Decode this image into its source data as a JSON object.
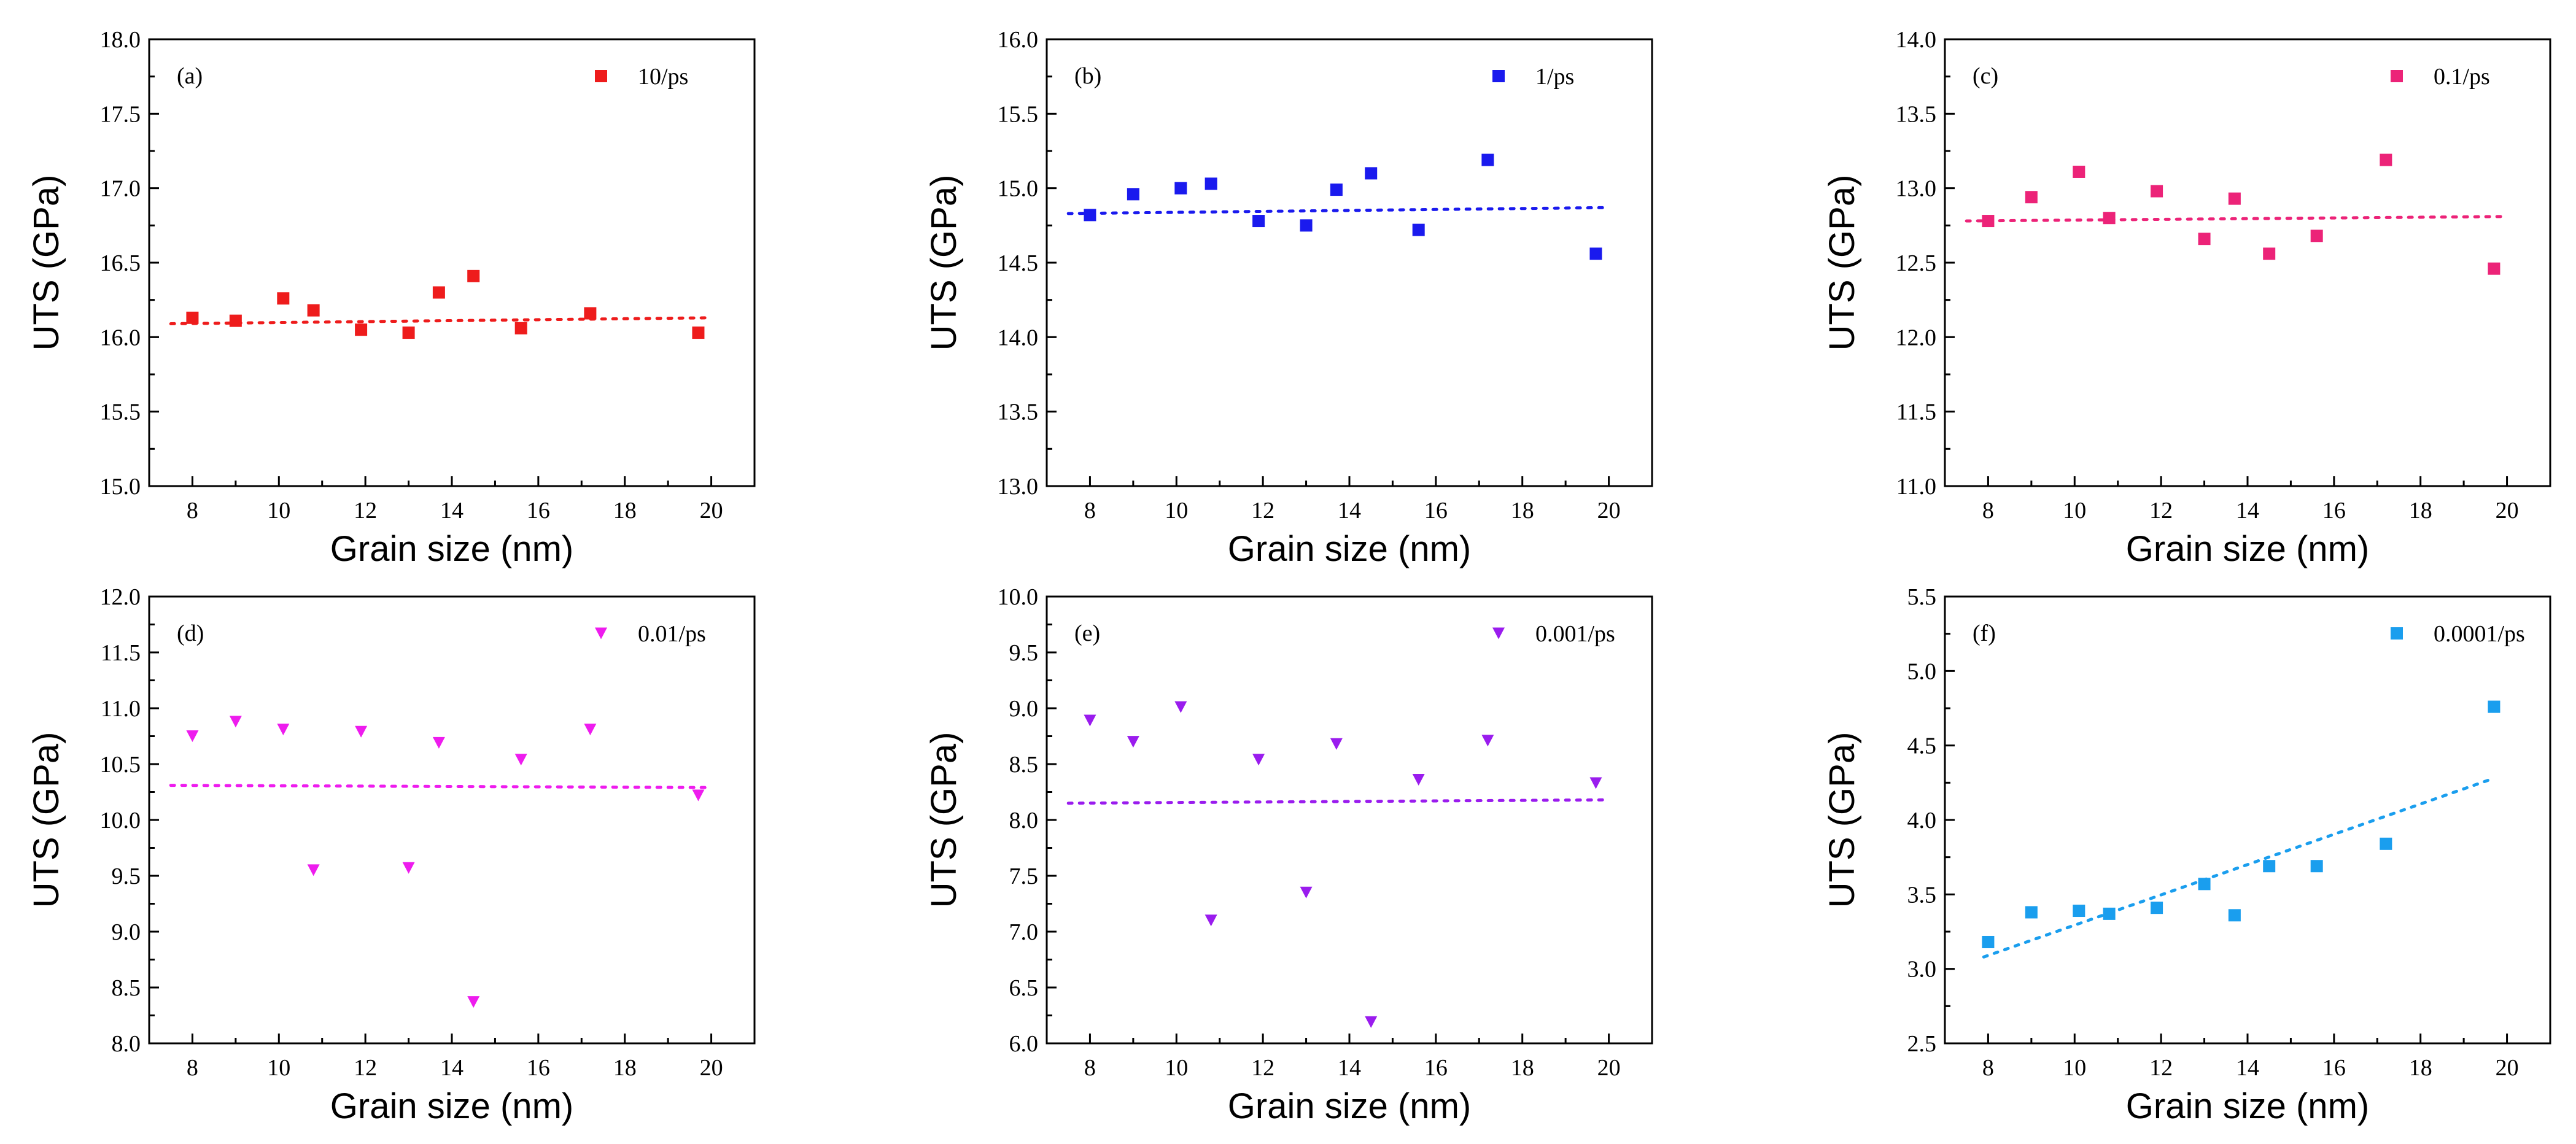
{
  "chart_data": [
    {
      "type": "scatter",
      "panel_label": "(a)",
      "xlabel": "Grain size (nm)",
      "ylabel": "UTS (GPa)",
      "xlim": [
        7.0,
        21.0
      ],
      "ylim": [
        15.0,
        18.0
      ],
      "xticks": [
        8,
        10,
        12,
        14,
        16,
        18,
        20
      ],
      "xtick_labels": [
        "8",
        "10",
        "12",
        "14",
        "16",
        "18",
        "20"
      ],
      "yticks": [
        15.0,
        15.5,
        16.0,
        16.5,
        17.0,
        17.5,
        18.0
      ],
      "ytick_labels": [
        "15.0",
        "15.5",
        "16.0",
        "16.5",
        "17.0",
        "17.5",
        "18.0"
      ],
      "legend_position": "top-right",
      "marker": "square",
      "color": "#ee1c1c",
      "series": [
        {
          "name": "10/ps",
          "x": [
            8.0,
            9.0,
            10.1,
            10.8,
            11.9,
            13.0,
            13.7,
            14.5,
            15.6,
            17.2,
            19.7
          ],
          "y": [
            16.13,
            16.11,
            16.26,
            16.18,
            16.05,
            16.03,
            16.3,
            16.41,
            16.06,
            16.16,
            16.03
          ]
        }
      ],
      "trend": {
        "x": [
          7.5,
          20.0
        ],
        "y": [
          16.09,
          16.13
        ]
      }
    },
    {
      "type": "scatter",
      "panel_label": "(b)",
      "xlabel": "Grain size (nm)",
      "ylabel": "UTS (GPa)",
      "xlim": [
        7.0,
        21.0
      ],
      "ylim": [
        13.0,
        16.0
      ],
      "xticks": [
        8,
        10,
        12,
        14,
        16,
        18,
        20
      ],
      "xtick_labels": [
        "8",
        "10",
        "12",
        "14",
        "16",
        "18",
        "20"
      ],
      "yticks": [
        13.0,
        13.5,
        14.0,
        14.5,
        15.0,
        15.5,
        16.0
      ],
      "ytick_labels": [
        "13.0",
        "13.5",
        "14.0",
        "14.5",
        "15.0",
        "15.5",
        "16.0"
      ],
      "legend_position": "top-right",
      "marker": "square",
      "color": "#1a1aee",
      "series": [
        {
          "name": "1/ps",
          "x": [
            8.0,
            9.0,
            10.1,
            10.8,
            11.9,
            13.0,
            13.7,
            14.5,
            15.6,
            17.2,
            19.7
          ],
          "y": [
            14.82,
            14.96,
            15.0,
            15.03,
            14.78,
            14.75,
            14.99,
            15.1,
            14.72,
            15.19,
            14.56
          ]
        }
      ],
      "trend": {
        "x": [
          7.5,
          20.0
        ],
        "y": [
          14.83,
          14.87
        ]
      }
    },
    {
      "type": "scatter",
      "panel_label": "(c)",
      "xlabel": "Grain size (nm)",
      "ylabel": "UTS (GPa)",
      "xlim": [
        7.0,
        21.0
      ],
      "ylim": [
        11.0,
        14.0
      ],
      "xticks": [
        8,
        10,
        12,
        14,
        16,
        18,
        20
      ],
      "xtick_labels": [
        "8",
        "10",
        "12",
        "14",
        "16",
        "18",
        "20"
      ],
      "yticks": [
        11.0,
        11.5,
        12.0,
        12.5,
        13.0,
        13.5,
        14.0
      ],
      "ytick_labels": [
        "11.0",
        "11.5",
        "12.0",
        "12.5",
        "13.0",
        "13.5",
        "14.0"
      ],
      "legend_position": "top-right",
      "marker": "square",
      "color": "#ec2378",
      "series": [
        {
          "name": "0.1/ps",
          "x": [
            8.0,
            9.0,
            10.1,
            10.8,
            11.9,
            13.0,
            13.7,
            14.5,
            15.6,
            17.2,
            19.7
          ],
          "y": [
            12.78,
            12.94,
            13.11,
            12.8,
            12.98,
            12.66,
            12.93,
            12.56,
            12.68,
            13.19,
            12.46
          ]
        }
      ],
      "trend": {
        "x": [
          7.5,
          20.0
        ],
        "y": [
          12.78,
          12.81
        ]
      }
    },
    {
      "type": "scatter",
      "panel_label": "(d)",
      "xlabel": "Grain size (nm)",
      "ylabel": "UTS (GPa)",
      "xlim": [
        7.0,
        21.0
      ],
      "ylim": [
        8.0,
        12.0
      ],
      "xticks": [
        8,
        10,
        12,
        14,
        16,
        18,
        20
      ],
      "xtick_labels": [
        "8",
        "10",
        "12",
        "14",
        "16",
        "18",
        "20"
      ],
      "yticks": [
        8.0,
        8.5,
        9.0,
        9.5,
        10.0,
        10.5,
        11.0,
        11.5,
        12.0
      ],
      "ytick_labels": [
        "8.0",
        "8.5",
        "9.0",
        "9.5",
        "10.0",
        "10.5",
        "11.0",
        "11.5",
        "12.0"
      ],
      "legend_position": "top-right",
      "marker": "triangle-down",
      "color": "#ee1cee",
      "series": [
        {
          "name": "0.01/ps",
          "x": [
            8.0,
            9.0,
            10.1,
            10.8,
            11.9,
            13.0,
            13.7,
            14.5,
            15.6,
            17.2,
            19.7
          ],
          "y": [
            10.75,
            10.88,
            10.81,
            9.55,
            10.79,
            9.57,
            10.69,
            8.37,
            10.54,
            10.81,
            10.22
          ]
        }
      ],
      "trend": {
        "x": [
          7.5,
          20.0
        ],
        "y": [
          10.31,
          10.29
        ]
      }
    },
    {
      "type": "scatter",
      "panel_label": "(e)",
      "xlabel": "Grain size (nm)",
      "ylabel": "UTS (GPa)",
      "xlim": [
        7.0,
        21.0
      ],
      "ylim": [
        6.0,
        10.0
      ],
      "xticks": [
        8,
        10,
        12,
        14,
        16,
        18,
        20
      ],
      "xtick_labels": [
        "8",
        "10",
        "12",
        "14",
        "16",
        "18",
        "20"
      ],
      "yticks": [
        6.0,
        6.5,
        7.0,
        7.5,
        8.0,
        8.5,
        9.0,
        9.5,
        10.0
      ],
      "ytick_labels": [
        "6.0",
        "6.5",
        "7.0",
        "7.5",
        "8.0",
        "8.5",
        "9.0",
        "9.5",
        "10.0"
      ],
      "legend_position": "top-right",
      "marker": "triangle-down",
      "color": "#9a1cee",
      "series": [
        {
          "name": "0.001/ps",
          "x": [
            8.0,
            9.0,
            10.1,
            10.8,
            11.9,
            13.0,
            13.7,
            14.5,
            15.6,
            17.2,
            19.7
          ],
          "y": [
            8.89,
            8.7,
            9.01,
            7.1,
            8.54,
            7.35,
            8.68,
            6.19,
            8.36,
            8.71,
            8.33
          ]
        }
      ],
      "trend": {
        "x": [
          7.5,
          20.0
        ],
        "y": [
          8.15,
          8.18
        ]
      }
    },
    {
      "type": "scatter",
      "panel_label": "(f)",
      "xlabel": "Grain size (nm)",
      "ylabel": "UTS (GPa)",
      "xlim": [
        7.0,
        21.0
      ],
      "ylim": [
        2.5,
        5.5
      ],
      "xticks": [
        8,
        10,
        12,
        14,
        16,
        18,
        20
      ],
      "xtick_labels": [
        "8",
        "10",
        "12",
        "14",
        "16",
        "18",
        "20"
      ],
      "yticks": [
        2.5,
        3.0,
        3.5,
        4.0,
        4.5,
        5.0,
        5.5
      ],
      "ytick_labels": [
        "2.5",
        "3.0",
        "3.5",
        "4.0",
        "4.5",
        "5.0",
        "5.5"
      ],
      "legend_position": "top-right",
      "marker": "square",
      "color": "#1a9eee",
      "series": [
        {
          "name": "0.0001/ps",
          "x": [
            8.0,
            9.0,
            10.1,
            10.8,
            11.9,
            13.0,
            13.7,
            14.5,
            15.6,
            17.2,
            19.7
          ],
          "y": [
            3.18,
            3.38,
            3.39,
            3.37,
            3.41,
            3.57,
            3.36,
            3.69,
            3.69,
            3.84,
            4.76
          ]
        }
      ],
      "trend": {
        "x": [
          7.9,
          19.7
        ],
        "y": [
          3.08,
          4.28
        ]
      }
    }
  ]
}
